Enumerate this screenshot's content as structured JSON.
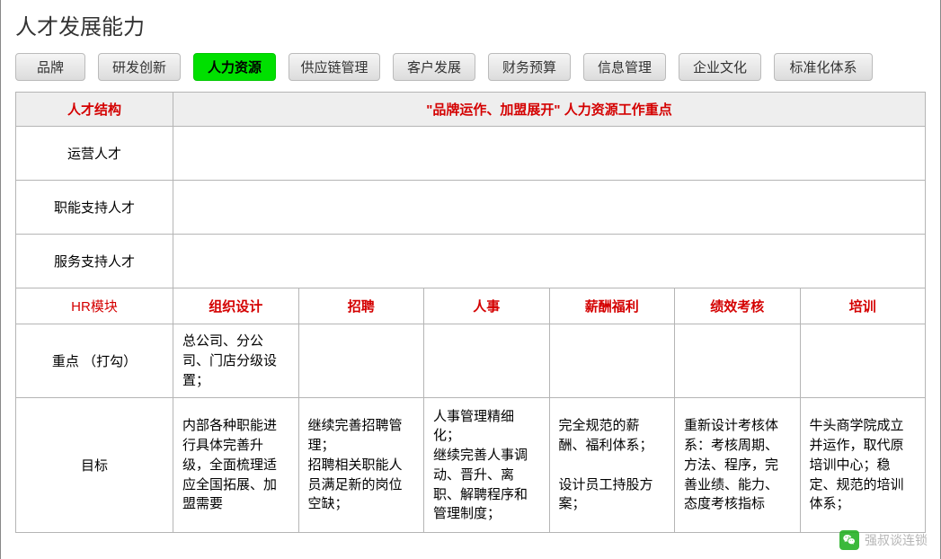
{
  "title": "人才发展能力",
  "tabs": {
    "items": [
      {
        "label": "品牌",
        "width": 78
      },
      {
        "label": "研发创新",
        "width": 92
      },
      {
        "label": "人力资源",
        "width": 92
      },
      {
        "label": "供应链管理",
        "width": 102
      },
      {
        "label": "客户发展",
        "width": 92
      },
      {
        "label": "财务预算",
        "width": 92
      },
      {
        "label": "信息管理",
        "width": 92
      },
      {
        "label": "企业文化",
        "width": 92
      },
      {
        "label": "标准化体系",
        "width": 110
      }
    ],
    "active_index": 2,
    "bg_color": "#e0e0e0",
    "active_bg_color": "#00e000",
    "text_color": "#333333"
  },
  "table": {
    "border_color": "#b5b5b5",
    "header_bg": "#eeeeee",
    "red_color": "#d40000",
    "font_size": 15,
    "col1_width": 175,
    "header_row": {
      "left": "人才结构",
      "right": "\"品牌运作、加盟展开\"  人力资源工作重点"
    },
    "structure_rows": [
      "运营人才",
      "职能支持人才",
      "服务支持人才"
    ],
    "hr_header": {
      "left": "HR模块",
      "cols": [
        "组织设计",
        "招聘",
        "人事",
        "薪酬福利",
        "绩效考核",
        "培训"
      ]
    },
    "focus_row": {
      "left": "重点 （打勾）",
      "cells": [
        "总公司、分公司、门店分级设置；",
        "",
        "",
        "",
        "",
        ""
      ]
    },
    "goal_row": {
      "left": "目标",
      "cells": [
        "内部各种职能进行具体完善升级，全面梳理适应全国拓展、加盟需要",
        "继续完善招聘管理；\n招聘相关职能人员满足新的岗位空缺；",
        "人事管理精细化；\n继续完善人事调动、晋升、离职、解聘程序和管理制度；",
        "完全规范的薪酬、福利体系；\n\n设计员工持股方案；",
        "重新设计考核体系：考核周期、方法、程序，完善业绩、能力、态度考核指标",
        "牛头商学院成立并运作，取代原培训中心；稳定、规范的培训体系；"
      ]
    }
  },
  "watermark": {
    "text": "强叔谈连锁",
    "icon_name": "wechat-icon",
    "icon_bg": "#1aad19",
    "text_color": "#aaaaaa"
  }
}
